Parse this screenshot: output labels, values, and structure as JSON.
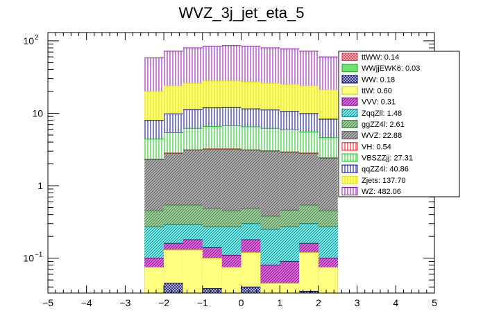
{
  "chart_data": {
    "type": "bar",
    "stacked": true,
    "title": "WVZ_3j_jet_eta_5",
    "xlabel": "",
    "ylabel": "",
    "xlim": [
      -5,
      5
    ],
    "ylim": [
      0.033,
      130
    ],
    "y_scale": "log",
    "x_ticks": [
      "−5",
      "−4",
      "−3",
      "−2",
      "−1",
      "0",
      "1",
      "2",
      "3",
      "4",
      "5"
    ],
    "y_tick_labels": [
      {
        "value": 0.1,
        "base": "10",
        "exp": "−1"
      },
      {
        "value": 1,
        "base": "1",
        "exp": ""
      },
      {
        "value": 10,
        "base": "10",
        "exp": ""
      },
      {
        "value": 100,
        "base": "10",
        "exp": "2"
      }
    ],
    "bin_edges": [
      -2.5,
      -2.0,
      -1.5,
      -1.0,
      -0.5,
      0.0,
      0.5,
      1.0,
      1.5,
      2.0,
      2.5
    ],
    "stack_order": [
      "ttWW",
      "WWjjEWK6",
      "WW",
      "ttW",
      "VVV",
      "ZqqZll",
      "ggZZ4l",
      "WVZ",
      "VH",
      "VBSZZjj",
      "qqZZ4l",
      "Zjets",
      "WZ"
    ],
    "cumulative_tops": {
      "ttWW": [
        0.033,
        0.033,
        0.033,
        0.033,
        0.033,
        0.033,
        0.033,
        0.033,
        0.033,
        0.033
      ],
      "WWjjEWK6": [
        0.033,
        0.033,
        0.033,
        0.033,
        0.033,
        0.033,
        0.033,
        0.033,
        0.033,
        0.033
      ],
      "WW": [
        0.033,
        0.045,
        0.033,
        0.038,
        0.033,
        0.04,
        0.033,
        0.033,
        0.035,
        0.033
      ],
      "ttW": [
        0.075,
        0.13,
        0.13,
        0.1,
        0.075,
        0.12,
        0.045,
        0.045,
        0.12,
        0.075
      ],
      "VVV": [
        0.1,
        0.16,
        0.18,
        0.14,
        0.11,
        0.18,
        0.08,
        0.09,
        0.16,
        0.1
      ],
      "ZqqZll": [
        0.27,
        0.29,
        0.29,
        0.27,
        0.27,
        0.3,
        0.25,
        0.27,
        0.3,
        0.27
      ],
      "ggZZ4l": [
        0.45,
        0.54,
        0.54,
        0.48,
        0.45,
        0.48,
        0.38,
        0.46,
        0.54,
        0.45
      ],
      "WVZ": [
        2.3,
        2.8,
        3.1,
        3.2,
        3.2,
        3.1,
        3.0,
        2.9,
        2.8,
        2.4
      ],
      "VH": [
        2.32,
        2.83,
        3.13,
        3.23,
        3.23,
        3.13,
        3.03,
        2.93,
        2.83,
        2.42
      ],
      "VBSZZjj": [
        4.4,
        5.4,
        6.2,
        6.6,
        6.7,
        6.5,
        6.2,
        5.9,
        5.5,
        4.6
      ],
      "qqZZ4l": [
        8.0,
        9.8,
        11.2,
        11.9,
        12.0,
        11.5,
        11.1,
        10.6,
        9.9,
        8.3
      ],
      "Zjets": [
        20.0,
        24.0,
        26.0,
        28.0,
        28.0,
        27.0,
        26.0,
        25.0,
        24.0,
        21.0
      ],
      "WZ": [
        58.0,
        72.0,
        80.0,
        84.0,
        86.0,
        84.0,
        80.0,
        77.0,
        72.0,
        60.0
      ]
    },
    "series": [
      {
        "name": "ttWW",
        "legend": "ttWW: 0.14",
        "total": 0.14,
        "color": "#c0404f",
        "fill": "#ffb0bb",
        "pattern": "cross"
      },
      {
        "name": "WWjjEWK6",
        "legend": "WWjjEWK6: 0.03",
        "total": 0.03,
        "color": "#10a020",
        "fill": "#70e070",
        "pattern": "solid"
      },
      {
        "name": "WW",
        "legend": "WW: 0.18",
        "total": 0.18,
        "color": "#000060",
        "fill": "#c8c8e0",
        "pattern": "cross"
      },
      {
        "name": "ttW",
        "legend": "ttW: 0.60",
        "total": 0.6,
        "color": "#c0c000",
        "fill": "#ffff80",
        "pattern": "solid"
      },
      {
        "name": "VVV",
        "legend": "VVV: 0.31",
        "total": 0.31,
        "color": "#800080",
        "fill": "#e070e0",
        "pattern": "diag"
      },
      {
        "name": "ZqqZll",
        "legend": "ZqqZll: 1.48",
        "total": 1.48,
        "color": "#008080",
        "fill": "#80f0f0",
        "pattern": "diag"
      },
      {
        "name": "ggZZ4l",
        "legend": "ggZZ4l: 2.61",
        "total": 2.61,
        "color": "#408040",
        "fill": "#a0d0a0",
        "pattern": "diag"
      },
      {
        "name": "WVZ",
        "legend": "WVZ: 22.88",
        "total": 22.88,
        "color": "#505050",
        "fill": "#b0b0b0",
        "pattern": "diag"
      },
      {
        "name": "VH",
        "legend": "VH: 0.54",
        "total": 0.54,
        "color": "#ff0000",
        "fill": "#ffffff",
        "pattern": "vert"
      },
      {
        "name": "VBSZZjj",
        "legend": "VBSZZjj: 27.31",
        "total": 27.31,
        "color": "#00cc00",
        "fill": "#ffffff",
        "pattern": "vert"
      },
      {
        "name": "qqZZ4l",
        "legend": "qqZZ4l: 40.86",
        "total": 40.86,
        "color": "#0000a0",
        "fill": "#ffffff",
        "pattern": "vert"
      },
      {
        "name": "Zjets",
        "legend": "Zjets: 137.70",
        "total": 137.7,
        "color": "#e0e000",
        "fill": "#ffff80",
        "pattern": "vert"
      },
      {
        "name": "WZ",
        "legend": "WZ: 482.06",
        "total": 482.06,
        "color": "#a000c0",
        "fill": "#ffffff",
        "pattern": "vert"
      }
    ],
    "legend_placement": "right, inside plot"
  }
}
